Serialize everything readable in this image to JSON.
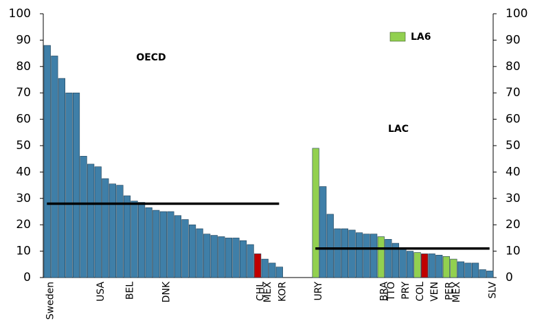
{
  "chart_data": {
    "type": "bar",
    "ylim": [
      0,
      100
    ],
    "yticks": [
      0,
      10,
      20,
      30,
      40,
      50,
      60,
      70,
      80,
      90,
      100
    ],
    "y2lim": [
      0,
      100
    ],
    "y2ticks": [
      0,
      10,
      20,
      30,
      40,
      50,
      60,
      70,
      80,
      90,
      100
    ],
    "legend": {
      "name": "LA6",
      "color": "#92d050"
    },
    "groups": [
      {
        "label": "OECD",
        "average": 28,
        "categories": [
          "Sweden",
          null,
          null,
          null,
          null,
          null,
          null,
          "USA",
          null,
          null,
          null,
          "BEL",
          null,
          null,
          null,
          null,
          "DNK",
          null,
          null,
          null,
          null,
          null,
          null,
          null,
          null,
          null,
          null,
          null,
          null,
          "CHL",
          "MEX",
          null,
          "KOR"
        ],
        "values": [
          88,
          84,
          75.5,
          70,
          70,
          46,
          43,
          42,
          37.5,
          35.5,
          35,
          31,
          29,
          28.5,
          26.5,
          25.5,
          25,
          25,
          23.5,
          22,
          20,
          18.5,
          16.5,
          16,
          15.5,
          15,
          15,
          14,
          12.5,
          9,
          7,
          5.5,
          4
        ],
        "colors": [
          "#3f7fa8",
          "#3f7fa8",
          "#3f7fa8",
          "#3f7fa8",
          "#3f7fa8",
          "#3f7fa8",
          "#3f7fa8",
          "#3f7fa8",
          "#3f7fa8",
          "#3f7fa8",
          "#3f7fa8",
          "#3f7fa8",
          "#3f7fa8",
          "#3f7fa8",
          "#3f7fa8",
          "#3f7fa8",
          "#3f7fa8",
          "#3f7fa8",
          "#3f7fa8",
          "#3f7fa8",
          "#3f7fa8",
          "#3f7fa8",
          "#3f7fa8",
          "#3f7fa8",
          "#3f7fa8",
          "#3f7fa8",
          "#3f7fa8",
          "#3f7fa8",
          "#3f7fa8",
          "#c00000",
          "#3f7fa8",
          "#3f7fa8",
          "#3f7fa8"
        ]
      },
      {
        "label": "LAC",
        "average": 11,
        "categories": [
          "URY",
          null,
          null,
          null,
          null,
          null,
          null,
          null,
          null,
          "BRA",
          "TTO",
          null,
          "PRY",
          null,
          "COL",
          null,
          "VEN",
          null,
          "PER",
          "MEX",
          null,
          null,
          null,
          null,
          "SLV"
        ],
        "values": [
          49,
          34.5,
          24,
          18.5,
          18.5,
          18,
          17,
          16.5,
          16.5,
          15.5,
          14.5,
          13,
          11,
          10,
          9.5,
          9,
          9,
          8.5,
          8,
          7,
          6,
          5.5,
          5.5,
          3,
          2.5
        ],
        "colors": [
          "#92d050",
          "#3f7fa8",
          "#3f7fa8",
          "#3f7fa8",
          "#3f7fa8",
          "#3f7fa8",
          "#3f7fa8",
          "#3f7fa8",
          "#3f7fa8",
          "#92d050",
          "#3f7fa8",
          "#3f7fa8",
          "#3f7fa8",
          "#3f7fa8",
          "#92d050",
          "#c00000",
          "#3f7fa8",
          "#3f7fa8",
          "#92d050",
          "#92d050",
          "#3f7fa8",
          "#3f7fa8",
          "#3f7fa8",
          "#3f7fa8",
          "#3f7fa8"
        ]
      }
    ]
  }
}
